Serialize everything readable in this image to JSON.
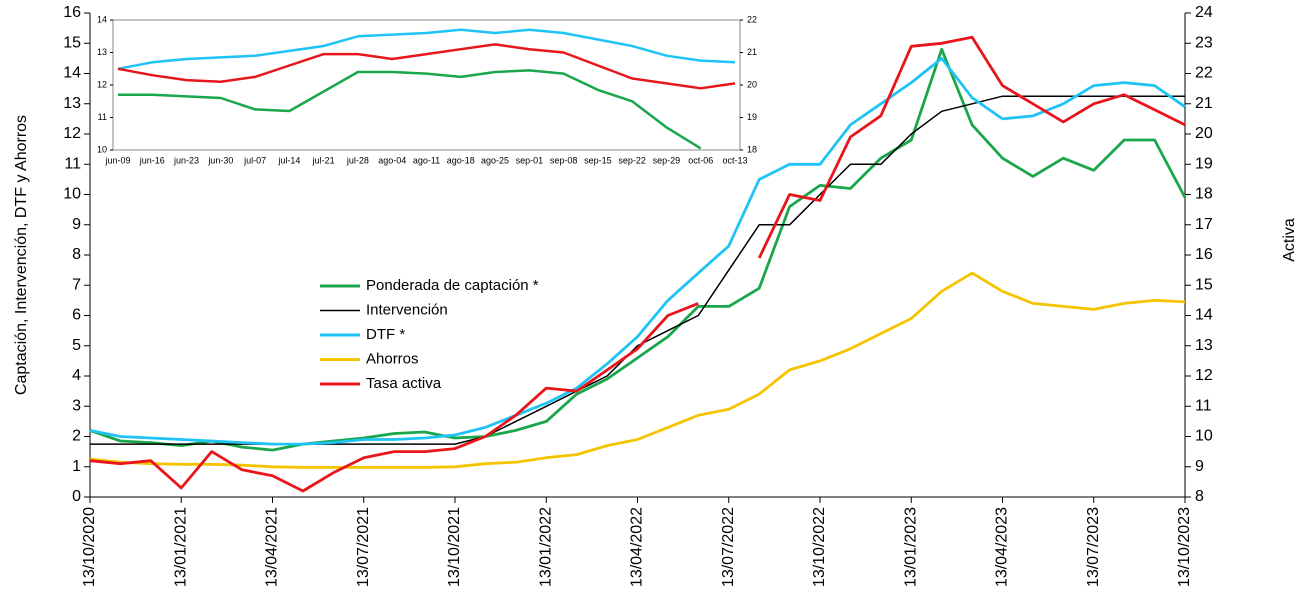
{
  "chart_data": [
    {
      "type": "line",
      "y_label": "Captación, Intervención,  DTF  y Ahorros",
      "y2_label": "Activa",
      "categories": [
        "13/10/2020",
        null,
        null,
        "13/01/2021",
        null,
        null,
        "13/04/2021",
        null,
        null,
        "13/07/2021",
        null,
        null,
        "13/10/2021",
        null,
        null,
        "13/01/2022",
        null,
        null,
        "13/04/2022",
        null,
        null,
        "13/07/2022",
        null,
        null,
        "13/10/2022",
        null,
        null,
        "13/01/2023",
        null,
        null,
        "13/04/2023",
        null,
        null,
        "13/07/2023",
        null,
        null,
        "13/10/2023"
      ],
      "ylim": [
        0,
        16
      ],
      "yticks": [
        0,
        1,
        2,
        3,
        4,
        5,
        6,
        7,
        8,
        9,
        10,
        11,
        12,
        13,
        14,
        15,
        16
      ],
      "y2lim": [
        8,
        24
      ],
      "y2ticks": [
        8,
        9,
        10,
        11,
        12,
        13,
        14,
        15,
        16,
        17,
        18,
        19,
        20,
        21,
        22,
        23,
        24
      ],
      "legend": "center-left",
      "series": [
        {
          "name": "Ponderada de captación *",
          "color": "#1aa64a",
          "values": [
            2.2,
            1.85,
            1.8,
            1.7,
            1.85,
            1.65,
            1.55,
            1.75,
            1.85,
            1.95,
            2.1,
            2.15,
            1.95,
            2.0,
            2.2,
            2.5,
            3.4,
            3.9,
            4.6,
            5.3,
            6.3,
            6.3,
            6.9,
            9.6,
            10.3,
            10.2,
            11.2,
            11.8,
            14.8,
            12.3,
            11.2,
            10.6,
            11.2,
            10.8,
            11.8,
            11.8,
            9.9
          ]
        },
        {
          "name": "Intervención",
          "color": "#000000",
          "values": [
            1.75,
            1.75,
            1.75,
            1.75,
            1.75,
            1.75,
            1.75,
            1.75,
            1.75,
            1.75,
            1.75,
            1.75,
            1.75,
            2.0,
            2.5,
            3.0,
            3.5,
            4.0,
            5.0,
            5.5,
            6.0,
            7.5,
            9.0,
            9.0,
            10.0,
            11.0,
            11.0,
            12.0,
            12.75,
            13.0,
            13.25,
            13.25,
            13.25,
            13.25,
            13.25,
            13.25,
            13.25
          ]
        },
        {
          "name": "DTF *",
          "color": "#1fc4f4",
          "values": [
            2.2,
            2.0,
            1.95,
            1.9,
            1.85,
            1.8,
            1.75,
            1.75,
            1.8,
            1.9,
            1.9,
            1.95,
            2.05,
            2.3,
            2.7,
            3.1,
            3.6,
            4.4,
            5.3,
            6.5,
            7.4,
            8.3,
            10.5,
            11.0,
            11.0,
            12.3,
            13.0,
            13.7,
            14.5,
            13.2,
            12.5,
            12.6,
            13.0,
            13.6,
            13.7,
            13.6,
            12.9
          ]
        },
        {
          "name": "Ahorros",
          "color": "#f5c400",
          "values": [
            1.25,
            1.15,
            1.1,
            1.08,
            1.08,
            1.05,
            1.0,
            0.98,
            0.98,
            0.98,
            0.98,
            0.98,
            1.0,
            1.1,
            1.15,
            1.3,
            1.4,
            1.7,
            1.9,
            2.3,
            2.7,
            2.9,
            3.4,
            4.2,
            4.5,
            4.9,
            5.4,
            5.9,
            6.8,
            7.4,
            6.8,
            6.4,
            6.3,
            6.2,
            6.4,
            6.5,
            6.45
          ]
        },
        {
          "name": "Tasa activa",
          "color": "#e8161b",
          "axis": "y2",
          "values": [
            9.2,
            9.1,
            9.2,
            8.3,
            9.5,
            8.9,
            8.7,
            8.2,
            8.8,
            9.3,
            9.5,
            9.5,
            9.6,
            10.0,
            10.7,
            11.6,
            11.5,
            12.2,
            12.9,
            14.0,
            14.4,
            null,
            15.9,
            18.0,
            17.8,
            19.9,
            20.6,
            22.9,
            23.0,
            23.2,
            21.6,
            21.0,
            20.4,
            21.0,
            21.3,
            20.8,
            20.3
          ]
        }
      ]
    },
    {
      "type": "line",
      "categories": [
        "jun-09",
        "jun-16",
        "jun-23",
        "jun-30",
        "jul-07",
        "jul-14",
        "jul-21",
        "jul-28",
        "ago-04",
        "ago-11",
        "ago-18",
        "ago-25",
        "sep-01",
        "sep-08",
        "sep-15",
        "sep-22",
        "sep-29",
        "oct-06",
        "oct-13"
      ],
      "ylim": [
        10,
        14
      ],
      "yticks": [
        10,
        11,
        12,
        13,
        14
      ],
      "y2lim": [
        18,
        22
      ],
      "y2ticks": [
        18,
        19,
        20,
        21,
        22
      ],
      "series": [
        {
          "name": "Ponderada de captación *",
          "color": "#1aa64a",
          "values": [
            11.7,
            11.7,
            11.65,
            11.6,
            11.25,
            11.2,
            11.8,
            12.4,
            12.4,
            12.35,
            12.25,
            12.4,
            12.45,
            12.35,
            11.85,
            11.5,
            10.7,
            10.05,
            null
          ]
        },
        {
          "name": "DTF *",
          "color": "#1fc4f4",
          "values": [
            12.5,
            12.7,
            12.8,
            12.85,
            12.9,
            13.05,
            13.2,
            13.5,
            13.55,
            13.6,
            13.7,
            13.6,
            13.7,
            13.6,
            13.4,
            13.2,
            12.9,
            12.75,
            12.7
          ]
        },
        {
          "name": "Tasa activa",
          "color": "#e8161b",
          "axis": "y2",
          "values": [
            20.5,
            20.3,
            20.15,
            20.1,
            20.25,
            20.6,
            20.95,
            20.95,
            20.8,
            20.95,
            21.1,
            21.25,
            21.1,
            21.0,
            20.6,
            20.2,
            20.05,
            19.9,
            20.05
          ]
        }
      ]
    }
  ]
}
